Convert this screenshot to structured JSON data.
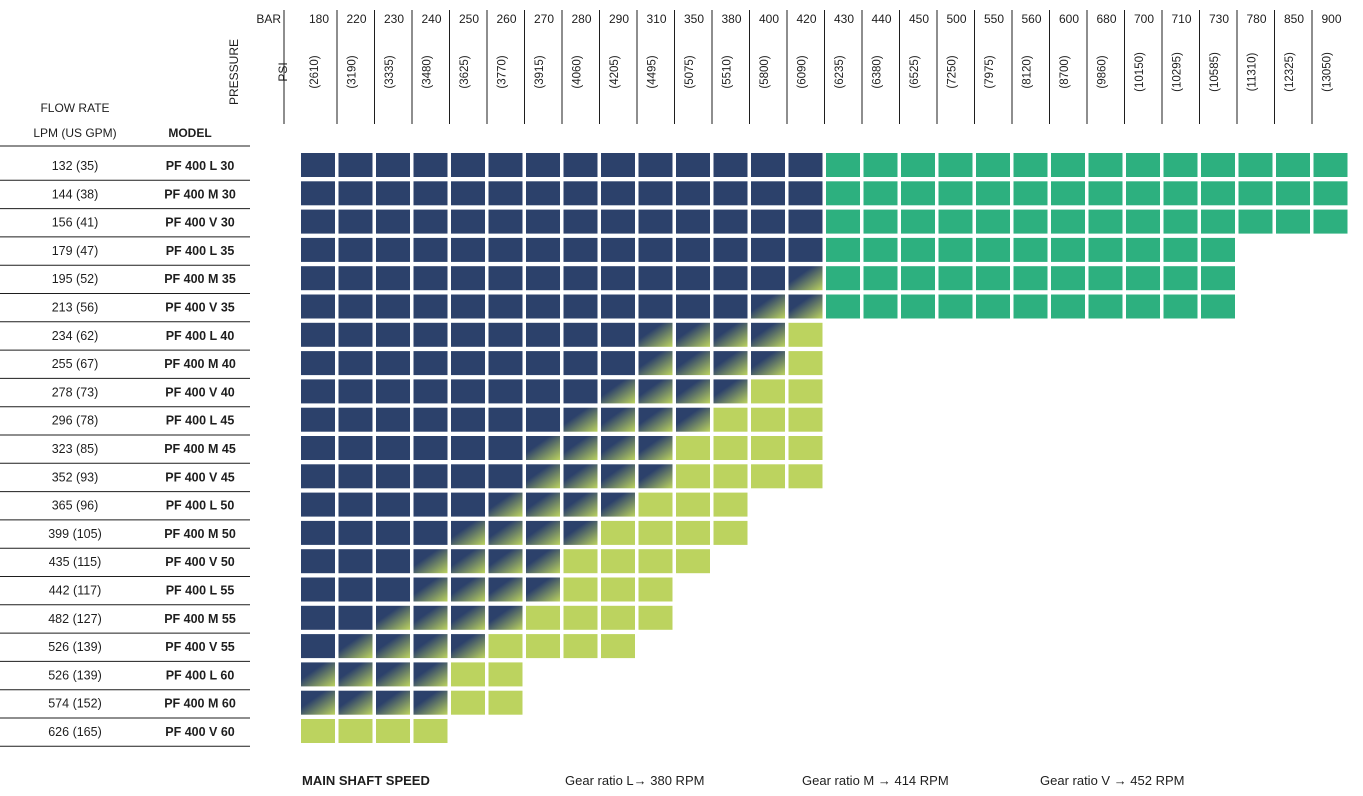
{
  "chart_data": {
    "type": "heatmap",
    "header": {
      "bar_label": "BAR",
      "psi_label": "PSI",
      "pressure_label": "PRESSURE",
      "flow_rate_label": "FLOW RATE",
      "flow_units_label": "LPM (US GPM)",
      "model_label": "MODEL"
    },
    "bar": [
      "180",
      "220",
      "230",
      "240",
      "250",
      "260",
      "270",
      "280",
      "290",
      "310",
      "350",
      "380",
      "400",
      "420",
      "430",
      "440",
      "450",
      "500",
      "550",
      "560",
      "600",
      "680",
      "700",
      "710",
      "730",
      "780",
      "850",
      "900"
    ],
    "psi": [
      "(2610)",
      "(3190)",
      "(3335)",
      "(3480)",
      "(3625)",
      "(3770)",
      "(3915)",
      "(4060)",
      "(4205)",
      "(4495)",
      "(5075)",
      "(5510)",
      "(5800)",
      "(6090)",
      "(6235)",
      "(6380)",
      "(6525)",
      "(7250)",
      "(7975)",
      "(8120)",
      "(8700)",
      "(9860)",
      "(10150)",
      "(10295)",
      "(10585)",
      "(11310)",
      "(12325)",
      "(13050)"
    ],
    "rows": [
      {
        "flow": "132  (35)",
        "model": "PF 400 L 30",
        "max_col": 28
      },
      {
        "flow": "144  (38)",
        "model": "PF 400 M 30",
        "max_col": 28
      },
      {
        "flow": "156  (41)",
        "model": "PF 400 V 30",
        "max_col": 28
      },
      {
        "flow": "179  (47)",
        "model": "PF 400 L 35",
        "max_col": 25
      },
      {
        "flow": "195  (52)",
        "model": "PF 400 M 35",
        "max_col": 25
      },
      {
        "flow": "213  (56)",
        "model": "PF 400 V 35",
        "max_col": 25
      },
      {
        "flow": "234  (62)",
        "model": "PF 400 L 40",
        "max_col": 14
      },
      {
        "flow": "255  (67)",
        "model": "PF 400 M 40",
        "max_col": 14
      },
      {
        "flow": "278  (73)",
        "model": "PF 400 V 40",
        "max_col": 14
      },
      {
        "flow": "296  (78)",
        "model": "PF 400 L 45",
        "max_col": 14
      },
      {
        "flow": "323  (85)",
        "model": "PF 400 M 45",
        "max_col": 14
      },
      {
        "flow": "352  (93)",
        "model": "PF 400 V 45",
        "max_col": 14
      },
      {
        "flow": "365  (96)",
        "model": "PF 400 L 50",
        "max_col": 12
      },
      {
        "flow": "399  (105)",
        "model": "PF 400 M 50",
        "max_col": 12
      },
      {
        "flow": "435  (115)",
        "model": "PF 400 V 50",
        "max_col": 11
      },
      {
        "flow": "442  (117)",
        "model": "PF 400 L 55",
        "max_col": 10
      },
      {
        "flow": "482  (127)",
        "model": "PF 400 M 55",
        "max_col": 10
      },
      {
        "flow": "526  (139)",
        "model": "PF 400 V 55",
        "max_col": 9
      },
      {
        "flow": "526  (139)",
        "model": "PF 400 L 60",
        "max_col": 6
      },
      {
        "flow": "574  (152)",
        "model": "PF 400 M 60",
        "max_col": 6
      },
      {
        "flow": "626  (165)",
        "model": "PF 400 V 60",
        "max_col": 4
      }
    ],
    "colors": {
      "navy": "#2c416b",
      "green": "#2db07f",
      "lime": "#bcd35f",
      "line": "#1e1e1e"
    },
    "grid": false,
    "legend": "none"
  },
  "footer": {
    "speed_label": "MAIN SHAFT SPEED",
    "gear_l": "Gear ratio L→ 380 RPM",
    "gear_m": "Gear ratio M → 414 RPM",
    "gear_v": "Gear ratio V → 452 RPM"
  }
}
